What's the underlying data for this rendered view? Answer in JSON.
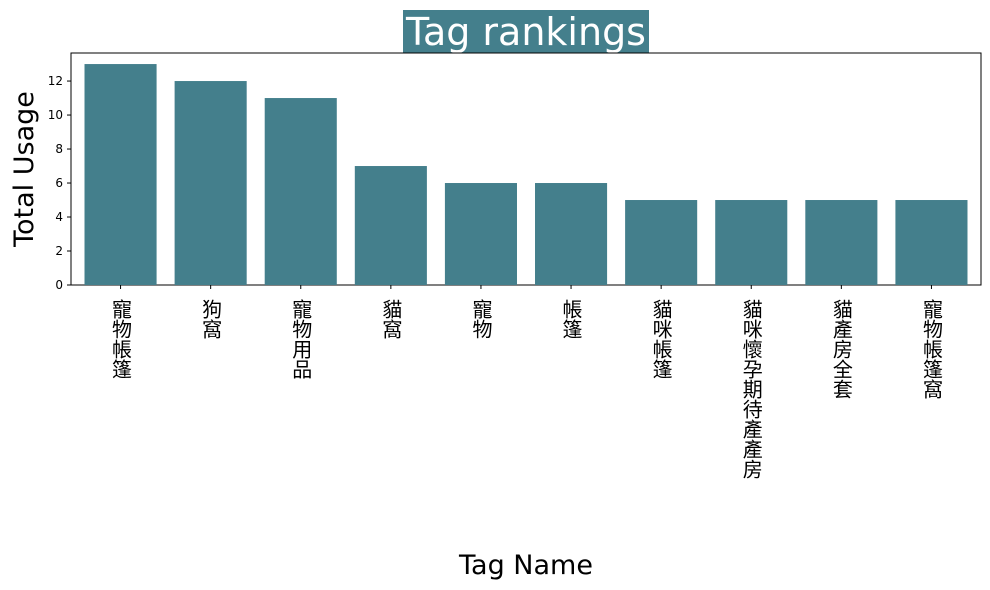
{
  "chart_data": {
    "type": "bar",
    "title": "Tag rankings",
    "xlabel": "Tag Name",
    "ylabel": "Total Usage",
    "categories": [
      "寵物帳篷",
      "狗窩",
      "寵物用品",
      "貓窩",
      "寵物",
      "帳篷",
      "貓咪帳篷",
      "貓咪懷孕期待產產房",
      "貓產房全套",
      "寵物帳篷窩"
    ],
    "values": [
      13,
      12,
      11,
      7,
      6,
      6,
      5,
      5,
      5,
      5
    ],
    "ylim": [
      0,
      13.65
    ],
    "yticks": [
      0,
      2,
      4,
      6,
      8,
      10,
      12
    ],
    "grid": false,
    "legend": "none",
    "bar_color": "#447f8c",
    "title_bg_color": "#447f8c",
    "title_color": "#ffffff"
  }
}
